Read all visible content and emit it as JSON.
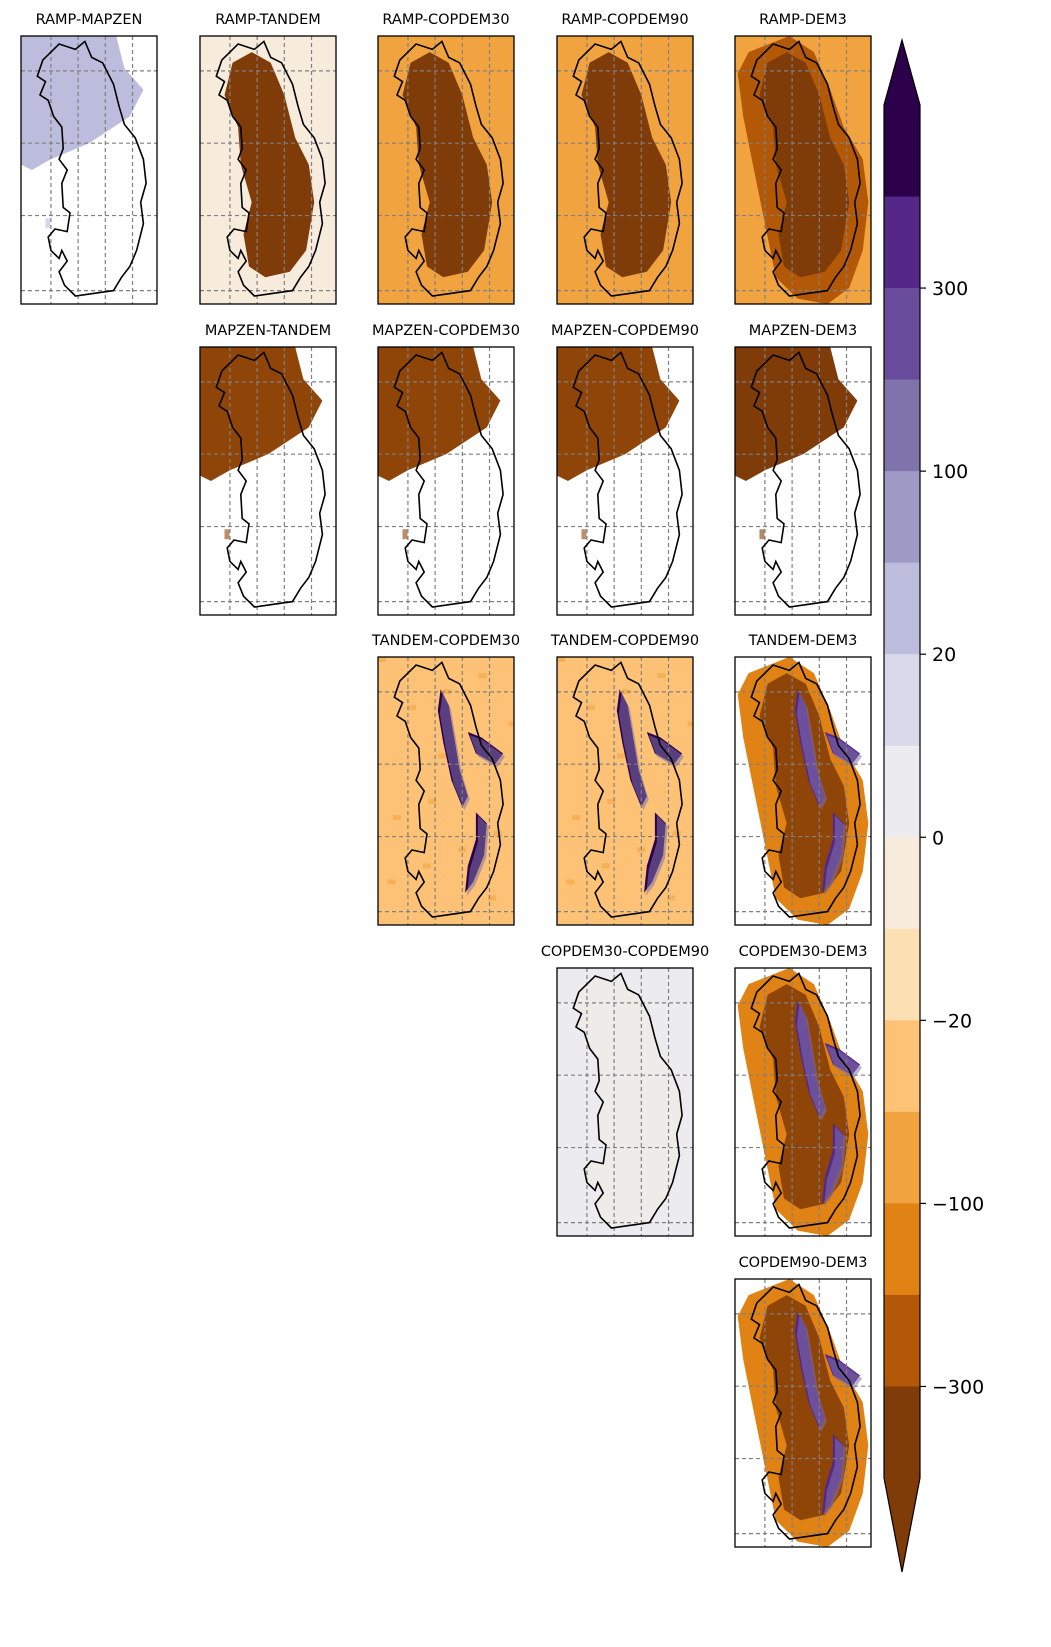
{
  "chart_data": {
    "type": "heatmap",
    "description_layout": "upper-triangle matrix of pairwise DEM difference maps with shared discrete colorbar",
    "panels": [
      {
        "title": "RAMP-MAPZEN",
        "row": 0,
        "col": 0,
        "fill": "#ffffff",
        "patch": "#bcbddc",
        "patch_mode": "nw",
        "streaks": false
      },
      {
        "title": "RAMP-TANDEM",
        "row": 0,
        "col": 1,
        "fill": "#f7ebdc",
        "patch": "#7f3b08",
        "patch_mode": "island",
        "streaks": false
      },
      {
        "title": "RAMP-COPDEM30",
        "row": 0,
        "col": 2,
        "fill": "#f1a340",
        "patch": "#7f3b08",
        "patch_mode": "island",
        "streaks": false
      },
      {
        "title": "RAMP-COPDEM90",
        "row": 0,
        "col": 3,
        "fill": "#f1a340",
        "patch": "#7f3b08",
        "patch_mode": "island",
        "streaks": false
      },
      {
        "title": "RAMP-DEM3",
        "row": 0,
        "col": 4,
        "fill": "#f1a340",
        "patch": "#7f3b08",
        "patch_mode": "wide",
        "streaks": false
      },
      {
        "title": "MAPZEN-TANDEM",
        "row": 1,
        "col": 1,
        "fill": "#ffffff",
        "patch": "#8f4508",
        "patch_mode": "nw",
        "streaks": false
      },
      {
        "title": "MAPZEN-COPDEM30",
        "row": 1,
        "col": 2,
        "fill": "#ffffff",
        "patch": "#8f4508",
        "patch_mode": "nw",
        "streaks": false
      },
      {
        "title": "MAPZEN-COPDEM90",
        "row": 1,
        "col": 3,
        "fill": "#ffffff",
        "patch": "#8f4508",
        "patch_mode": "nw",
        "streaks": false
      },
      {
        "title": "MAPZEN-DEM3",
        "row": 1,
        "col": 4,
        "fill": "#ffffff",
        "patch": "#7f3b08",
        "patch_mode": "nw",
        "streaks": false
      },
      {
        "title": "TANDEM-COPDEM30",
        "row": 2,
        "col": 2,
        "fill": "#fdc275",
        "patch": "#2d004b",
        "patch_mode": "streak",
        "streaks": true
      },
      {
        "title": "TANDEM-COPDEM90",
        "row": 2,
        "col": 3,
        "fill": "#fdc275",
        "patch": "#2d004b",
        "patch_mode": "streak",
        "streaks": true
      },
      {
        "title": "TANDEM-DEM3",
        "row": 2,
        "col": 4,
        "fill": "#ffffff",
        "patch": "#8f4508",
        "patch_mode": "dem3",
        "streaks": true
      },
      {
        "title": "COPDEM30-COPDEM90",
        "row": 3,
        "col": 3,
        "fill": "#ebebf0",
        "patch": "#f7ebdc",
        "patch_mode": "faint",
        "streaks": false
      },
      {
        "title": "COPDEM30-DEM3",
        "row": 3,
        "col": 4,
        "fill": "#ffffff",
        "patch": "#8f4508",
        "patch_mode": "dem3",
        "streaks": true
      },
      {
        "title": "COPDEM90-DEM3",
        "row": 4,
        "col": 4,
        "fill": "#ffffff",
        "patch": "#8f4508",
        "patch_mode": "dem3",
        "streaks": true
      }
    ],
    "colorbar": {
      "tick_labels": [
        "300",
        "100",
        "20",
        "0",
        "−20",
        "−100",
        "−300"
      ],
      "levels_top_to_bottom": [
        "#2d004b",
        "#542788",
        "#6a4c9c",
        "#8073ac",
        "#9f99c6",
        "#bcbddc",
        "#d8daeb",
        "#ebebf0",
        "#f7ebdc",
        "#fddfb4",
        "#fdc275",
        "#f1a340",
        "#e08214",
        "#b35806",
        "#7f3b08"
      ],
      "extend": "both",
      "extend_top_color": "#2d004b",
      "extend_bottom_color": "#7f3b08"
    },
    "grid": true,
    "grid_style": "dashed gray",
    "outline_color": "#000000"
  }
}
